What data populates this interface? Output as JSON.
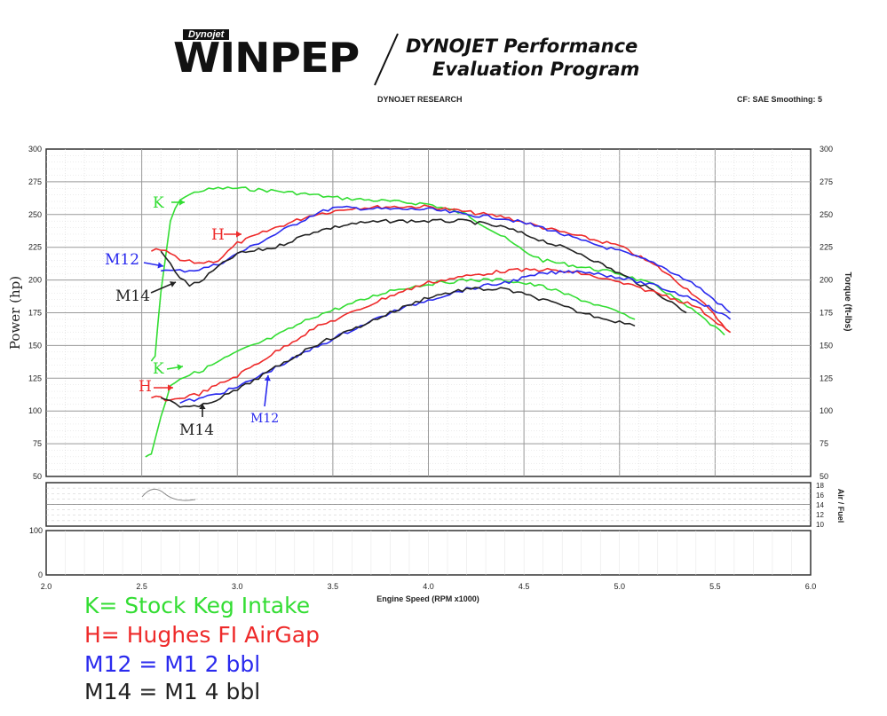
{
  "header": {
    "logo_small": "Dynojet",
    "logo": "WINPEP",
    "tagline_line1": "DYNOJET Performance",
    "tagline_line2": "Evaluation Program",
    "company": "DYNOJET RESEARCH",
    "settings": "CF: SAE  Smoothing: 5"
  },
  "colors": {
    "K": "#33dd33",
    "H": "#ee2a2a",
    "M12": "#2a2aee",
    "M14": "#222222",
    "grid": "#bdbdbd"
  },
  "chart_data": {
    "type": "line",
    "xlabel": "Engine Speed (RPM x1000)",
    "ylabel": "Power (hp)",
    "ylabel_right": "Torque (ft-lbs)",
    "xlim": [
      2.0,
      6.0
    ],
    "ylim": [
      50,
      300
    ],
    "ylim_right": [
      50,
      300
    ],
    "x_ticks": [
      "2.0",
      "2.5",
      "3.0",
      "3.5",
      "4.0",
      "4.5",
      "5.0",
      "5.5",
      "6.0"
    ],
    "y_ticks": [
      "50",
      "75",
      "100",
      "125",
      "150",
      "175",
      "200",
      "225",
      "250",
      "275",
      "300"
    ],
    "y_ticks_right": [
      "50",
      "75",
      "100",
      "125",
      "150",
      "175",
      "200",
      "225",
      "250",
      "275",
      "300"
    ],
    "grid": true,
    "torque_series": [
      {
        "name": "K",
        "x": [
          2.55,
          2.57,
          2.6,
          2.65,
          2.7,
          2.8,
          2.9,
          3.0,
          3.2,
          3.4,
          3.5,
          3.6,
          3.8,
          4.0,
          4.2,
          4.4,
          4.5,
          4.6,
          4.8,
          5.0,
          5.2,
          5.4,
          5.55
        ],
        "y": [
          138,
          142,
          190,
          245,
          262,
          268,
          270,
          270,
          268,
          265,
          263,
          262,
          260,
          258,
          250,
          232,
          222,
          215,
          210,
          205,
          195,
          175,
          158
        ]
      },
      {
        "name": "H",
        "x": [
          2.55,
          2.6,
          2.65,
          2.7,
          2.8,
          2.9,
          3.0,
          3.2,
          3.4,
          3.6,
          3.8,
          4.0,
          4.2,
          4.4,
          4.6,
          4.8,
          5.0,
          5.2,
          5.4,
          5.58
        ],
        "y": [
          222,
          223,
          220,
          215,
          213,
          215,
          228,
          240,
          250,
          255,
          256,
          256,
          252,
          248,
          240,
          233,
          226,
          210,
          188,
          160
        ]
      },
      {
        "name": "M12",
        "x": [
          2.6,
          2.65,
          2.7,
          2.8,
          2.9,
          3.0,
          3.2,
          3.4,
          3.5,
          3.6,
          3.8,
          4.0,
          4.2,
          4.4,
          4.6,
          4.8,
          5.0,
          5.2,
          5.4,
          5.58
        ],
        "y": [
          207,
          207,
          207,
          208,
          212,
          220,
          235,
          250,
          255,
          255,
          254,
          254,
          250,
          247,
          240,
          230,
          222,
          212,
          196,
          175
        ]
      },
      {
        "name": "M14",
        "x": [
          2.6,
          2.65,
          2.7,
          2.75,
          2.8,
          2.9,
          3.0,
          3.2,
          3.4,
          3.6,
          3.8,
          4.0,
          4.2,
          4.4,
          4.6,
          4.8,
          5.0,
          5.2,
          5.35
        ],
        "y": [
          222,
          212,
          202,
          196,
          198,
          210,
          220,
          225,
          237,
          243,
          245,
          245,
          245,
          240,
          230,
          220,
          205,
          190,
          175
        ]
      }
    ],
    "power_series": [
      {
        "name": "K",
        "x": [
          2.52,
          2.55,
          2.6,
          2.65,
          2.7,
          2.8,
          3.0,
          3.2,
          3.4,
          3.6,
          3.8,
          4.0,
          4.2,
          4.4,
          4.6,
          4.8,
          5.0,
          5.08
        ],
        "y": [
          65,
          68,
          95,
          120,
          125,
          130,
          145,
          157,
          172,
          182,
          192,
          197,
          200,
          200,
          195,
          185,
          175,
          170
        ]
      },
      {
        "name": "H",
        "x": [
          2.55,
          2.6,
          2.65,
          2.7,
          2.8,
          3.0,
          3.2,
          3.4,
          3.6,
          3.8,
          4.0,
          4.2,
          4.4,
          4.6,
          4.8,
          5.0,
          5.2,
          5.4,
          5.58
        ],
        "y": [
          110,
          110,
          108,
          110,
          113,
          127,
          145,
          163,
          175,
          188,
          198,
          203,
          207,
          208,
          205,
          198,
          190,
          180,
          160
        ]
      },
      {
        "name": "M12",
        "x": [
          2.7,
          2.75,
          2.8,
          3.0,
          3.2,
          3.4,
          3.6,
          3.8,
          4.0,
          4.2,
          4.4,
          4.6,
          4.8,
          5.0,
          5.2,
          5.4,
          5.58
        ],
        "y": [
          106,
          108,
          109,
          118,
          133,
          148,
          162,
          175,
          185,
          193,
          198,
          205,
          207,
          202,
          195,
          185,
          170
        ]
      },
      {
        "name": "M14",
        "x": [
          2.6,
          2.65,
          2.7,
          2.75,
          2.8,
          3.0,
          3.2,
          3.4,
          3.6,
          3.8,
          4.0,
          4.2,
          4.4,
          4.6,
          4.8,
          5.0,
          5.08
        ],
        "y": [
          110,
          108,
          104,
          103,
          103,
          116,
          133,
          150,
          162,
          175,
          187,
          193,
          193,
          185,
          175,
          168,
          165
        ]
      }
    ],
    "annotations": [
      {
        "series": "K",
        "text": "K",
        "target": "torque"
      },
      {
        "series": "H",
        "text": "H",
        "target": "torque"
      },
      {
        "series": "M12",
        "text": "M12",
        "target": "torque"
      },
      {
        "series": "M14",
        "text": "M14",
        "target": "torque"
      },
      {
        "series": "K",
        "text": "K",
        "target": "power"
      },
      {
        "series": "H",
        "text": "H",
        "target": "power"
      },
      {
        "series": "M14",
        "text": "M14",
        "target": "power"
      },
      {
        "series": "M12",
        "text": "M12",
        "target": "power"
      }
    ],
    "afr_panel": {
      "ylabel": "Air / Fuel",
      "y_ticks": [
        "10",
        "12",
        "14",
        "16",
        "18"
      ]
    },
    "bottom_panel": {
      "y_ticks": [
        "100",
        "0"
      ]
    }
  },
  "legend": [
    {
      "key": "K",
      "text": "K= Stock Keg Intake"
    },
    {
      "key": "H",
      "text": "H= Hughes FI AirGap"
    },
    {
      "key": "M12",
      "text": "M12 = M1 2 bbl"
    },
    {
      "key": "M14",
      "text": "M14 = M1 4 bbl"
    }
  ]
}
